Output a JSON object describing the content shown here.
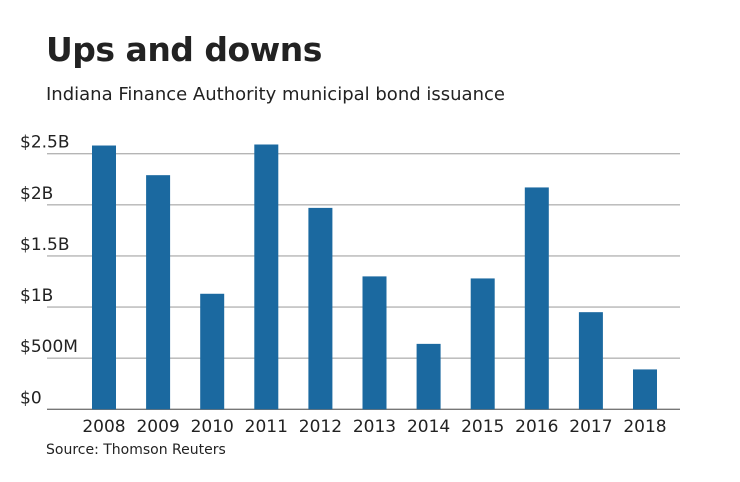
{
  "chart_data": {
    "type": "bar",
    "title": "Ups and downs",
    "subtitle": "Indiana Finance Authority municipal bond issuance",
    "source": "Source: Thomson Reuters",
    "xlabel": "",
    "ylabel": "",
    "categories": [
      "2008",
      "2009",
      "2010",
      "2011",
      "2012",
      "2013",
      "2014",
      "2015",
      "2016",
      "2017",
      "2018"
    ],
    "values": [
      2.58,
      2.29,
      1.13,
      2.59,
      1.97,
      1.3,
      0.64,
      1.28,
      2.17,
      0.95,
      0.39
    ],
    "unit": "billions USD",
    "ylim": [
      0,
      2.5
    ],
    "yticks": [
      0,
      0.5,
      1,
      1.5,
      2,
      2.5
    ],
    "ytick_labels": [
      "$0",
      "$500M",
      "$1B",
      "$1.5B",
      "$2B",
      "$2.5B"
    ],
    "grid": true,
    "bar_color": "#1b69a0",
    "grid_color": "#b5b5b5"
  }
}
